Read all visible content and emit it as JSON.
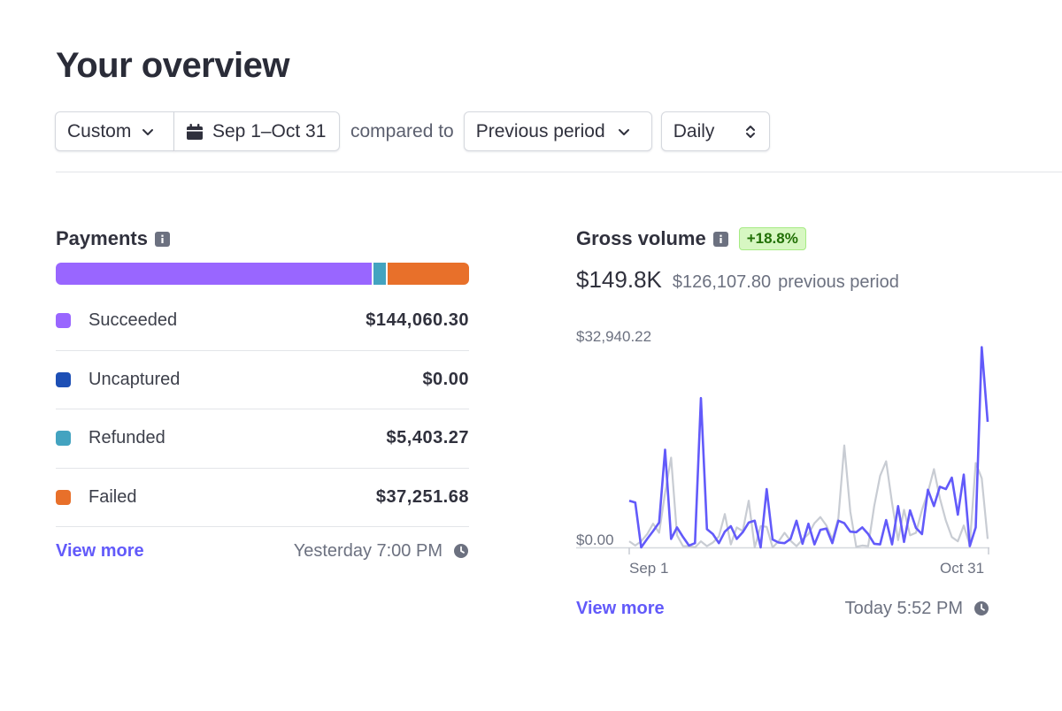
{
  "page_title": "Your overview",
  "filters": {
    "range_label": "Custom",
    "date_label": "Sep 1–Oct 31",
    "compared_text": "compared to",
    "comparison_label": "Previous period",
    "interval_label": "Daily"
  },
  "payments": {
    "title": "Payments",
    "items": [
      {
        "label": "Succeeded",
        "value": "$144,060.30",
        "color": "#9966ff",
        "amount": 144060.3
      },
      {
        "label": "Uncaptured",
        "value": "$0.00",
        "color": "#1d4fb5",
        "amount": 0
      },
      {
        "label": "Refunded",
        "value": "$5,403.27",
        "color": "#43a3c0",
        "amount": 5403.27
      },
      {
        "label": "Failed",
        "value": "$37,251.68",
        "color": "#e8702a",
        "amount": 37251.68
      }
    ],
    "view_more": "View more",
    "updated": "Yesterday 7:00 PM"
  },
  "gross_volume": {
    "title": "Gross volume",
    "change_badge": "+18.8%",
    "total": "$149.8K",
    "previous_total": "$126,107.80",
    "previous_suffix": "previous period",
    "view_more": "View more",
    "updated": "Today 5:52 PM"
  },
  "chart_data": {
    "type": "line",
    "y_max_label": "$32,940.22",
    "y_min_label": "$0.00",
    "x_start_label": "Sep 1",
    "x_end_label": "Oct 31",
    "ylim": [
      0,
      32940.22
    ],
    "series": [
      {
        "color": "#625afa",
        "values": [
          7700,
          7400,
          0,
          1400,
          2700,
          4100,
          16100,
          1400,
          3300,
          1700,
          300,
          700,
          24600,
          3000,
          2200,
          700,
          2600,
          3500,
          1400,
          2500,
          4100,
          4400,
          0,
          9600,
          1300,
          800,
          700,
          1400,
          4400,
          600,
          3900,
          500,
          2900,
          3100,
          700,
          4400,
          4000,
          2600,
          2500,
          3300,
          2200,
          600,
          500,
          4500,
          500,
          6800,
          900,
          6100,
          3200,
          2200,
          9500,
          6800,
          10000,
          9600,
          11500,
          5400,
          12000,
          200,
          3300,
          33000,
          20700
        ]
      },
      {
        "color": "#c8ccd3",
        "values": [
          1000,
          300,
          1000,
          2200,
          3900,
          2400,
          9000,
          14800,
          2000,
          200,
          200,
          0,
          1000,
          200,
          800,
          1800,
          5500,
          500,
          3300,
          2700,
          7700,
          0,
          3500,
          3400,
          0,
          1000,
          2400,
          1100,
          200,
          1300,
          2200,
          4000,
          5000,
          3600,
          1300,
          4800,
          16800,
          5900,
          100,
          300,
          200,
          6800,
          11800,
          14200,
          7300,
          1200,
          6200,
          2000,
          2400,
          6200,
          9100,
          12900,
          8100,
          4400,
          1700,
          1000,
          3600,
          400,
          13900,
          11400,
          1400
        ]
      }
    ]
  }
}
